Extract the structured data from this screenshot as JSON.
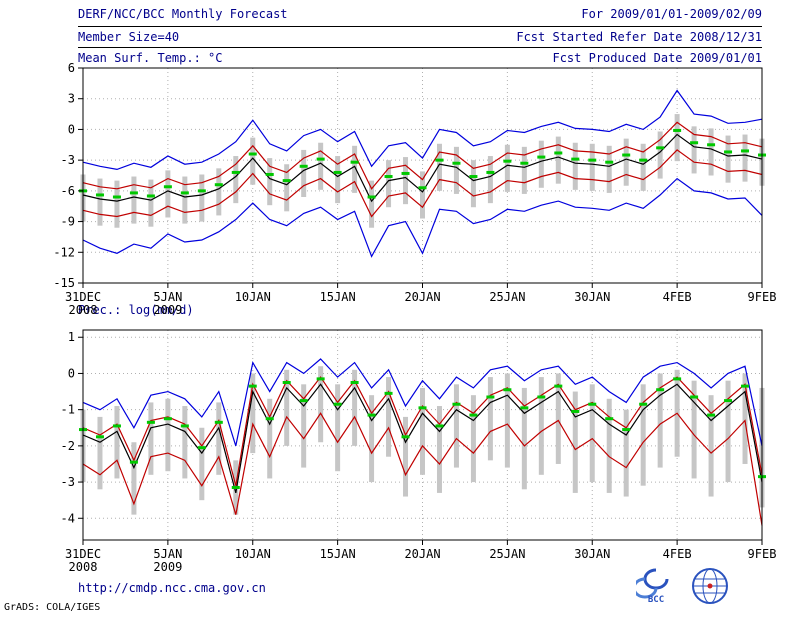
{
  "header": {
    "title": "DERF/NCC/BCC Monthly Forecast",
    "for_range": "For 2009/01/01-2009/02/09",
    "member_size": "Member Size=40",
    "fcst_started": "Fcst Started Refer Date 2008/12/31",
    "fcst_produced": "Fcst Produced Date 2009/01/01"
  },
  "footer": {
    "url": "http://cmdp.ncc.cma.gov.cn",
    "grads_credit": "GrADS: COLA/IGES",
    "logo1_label": "BCC",
    "logo2_name": "CMA/NCC emblem"
  },
  "colors": {
    "navy": "#00008b",
    "blue": "#0000dd",
    "red": "#c00000",
    "black": "#000000",
    "green": "#00c800",
    "gray": "#c6c6c6",
    "grid": "#b0b0b0"
  },
  "chart_data": [
    {
      "type": "line",
      "name": "temperature",
      "title": "Mean Surf. Temp.: °C",
      "ylabel": "°C",
      "ylim": [
        6,
        -15
      ],
      "frame_ylim": [
        6,
        -15
      ],
      "yticks": [
        6,
        3,
        0,
        -3,
        -6,
        -9,
        -12,
        -15
      ],
      "xticks": [
        {
          "day": 0,
          "label": "31DEC",
          "sub": "2008"
        },
        {
          "day": 5,
          "label": "5JAN",
          "sub": "2009"
        },
        {
          "day": 10,
          "label": "10JAN"
        },
        {
          "day": 15,
          "label": "15JAN"
        },
        {
          "day": 20,
          "label": "20JAN"
        },
        {
          "day": 25,
          "label": "25JAN"
        },
        {
          "day": 30,
          "label": "30JAN"
        },
        {
          "day": 35,
          "label": "4FEB"
        },
        {
          "day": 40,
          "label": "9FEB"
        }
      ],
      "dates": [
        "31DEC",
        "1JAN",
        "2JAN",
        "3JAN",
        "4JAN",
        "5JAN",
        "6JAN",
        "7JAN",
        "8JAN",
        "9JAN",
        "10JAN",
        "11JAN",
        "12JAN",
        "13JAN",
        "14JAN",
        "15JAN",
        "16JAN",
        "17JAN",
        "18JAN",
        "19JAN",
        "20JAN",
        "21JAN",
        "22JAN",
        "23JAN",
        "24JAN",
        "25JAN",
        "26JAN",
        "27JAN",
        "28JAN",
        "29JAN",
        "30JAN",
        "31JAN",
        "1FEB",
        "2FEB",
        "3FEB",
        "4FEB",
        "5FEB",
        "6FEB",
        "7FEB",
        "8FEB",
        "9FEB"
      ],
      "series": [
        {
          "name": "max",
          "color": "blue",
          "values": [
            -3.2,
            -3.6,
            -3.9,
            -3.3,
            -3.7,
            -2.6,
            -3.4,
            -3.2,
            -2.4,
            -1.2,
            0.9,
            -1.4,
            -2.1,
            -0.6,
            0.0,
            -1.2,
            -0.2,
            -3.6,
            -1.6,
            -1.3,
            -2.8,
            0.0,
            -0.3,
            -1.6,
            -1.2,
            -0.1,
            -0.3,
            0.3,
            0.7,
            0.1,
            0.0,
            -0.2,
            0.5,
            0.0,
            1.2,
            3.8,
            1.5,
            1.3,
            0.6,
            0.7,
            1.0
          ]
        },
        {
          "name": "upper",
          "color": "red",
          "values": [
            -5.2,
            -5.6,
            -5.8,
            -5.4,
            -5.7,
            -4.8,
            -5.4,
            -5.2,
            -4.6,
            -3.4,
            -1.6,
            -3.6,
            -4.2,
            -2.8,
            -2.1,
            -3.4,
            -2.4,
            -5.8,
            -3.8,
            -3.5,
            -4.9,
            -2.2,
            -2.5,
            -3.8,
            -3.4,
            -2.3,
            -2.5,
            -1.9,
            -1.5,
            -2.1,
            -2.2,
            -2.4,
            -1.7,
            -2.2,
            -1.0,
            0.7,
            -0.5,
            -0.7,
            -1.4,
            -1.3,
            -1.7
          ]
        },
        {
          "name": "mean",
          "color": "black",
          "values": [
            -6.4,
            -6.8,
            -7.0,
            -6.6,
            -6.9,
            -6.0,
            -6.6,
            -6.4,
            -5.8,
            -4.6,
            -2.8,
            -4.8,
            -5.4,
            -4.0,
            -3.3,
            -4.6,
            -3.6,
            -7.0,
            -5.0,
            -4.7,
            -6.1,
            -3.4,
            -3.7,
            -5.0,
            -4.6,
            -3.5,
            -3.7,
            -3.1,
            -2.7,
            -3.3,
            -3.4,
            -3.6,
            -2.9,
            -3.4,
            -2.2,
            -0.5,
            -1.7,
            -1.9,
            -2.6,
            -2.5,
            -2.9
          ]
        },
        {
          "name": "lower",
          "color": "red",
          "values": [
            -7.9,
            -8.3,
            -8.5,
            -8.1,
            -8.4,
            -7.5,
            -8.1,
            -7.9,
            -7.3,
            -6.1,
            -4.3,
            -6.3,
            -6.9,
            -5.5,
            -4.8,
            -6.1,
            -5.1,
            -8.5,
            -6.5,
            -6.2,
            -7.6,
            -4.9,
            -5.2,
            -6.5,
            -6.1,
            -5.0,
            -5.2,
            -4.6,
            -4.2,
            -4.8,
            -4.9,
            -5.1,
            -4.4,
            -4.9,
            -3.7,
            -2.0,
            -3.2,
            -3.4,
            -4.1,
            -4.0,
            -4.4
          ]
        },
        {
          "name": "min",
          "color": "blue",
          "values": [
            -10.8,
            -11.6,
            -12.1,
            -11.2,
            -11.6,
            -10.2,
            -11.0,
            -10.8,
            -10.0,
            -8.8,
            -7.2,
            -8.8,
            -9.4,
            -8.2,
            -7.6,
            -8.8,
            -8.0,
            -12.4,
            -9.4,
            -9.0,
            -12.1,
            -7.8,
            -8.0,
            -9.2,
            -8.8,
            -7.8,
            -8.0,
            -7.4,
            -7.0,
            -7.6,
            -7.7,
            -7.9,
            -7.2,
            -7.7,
            -6.4,
            -4.8,
            -6.0,
            -6.2,
            -6.8,
            -6.7,
            -8.4
          ]
        },
        {
          "name": "median",
          "color": "green",
          "style": "marks",
          "values": [
            -6.0,
            -6.4,
            -6.6,
            -6.2,
            -6.5,
            -5.6,
            -6.2,
            -6.0,
            -5.4,
            -4.2,
            -2.4,
            -4.4,
            -5.0,
            -3.6,
            -2.9,
            -4.2,
            -3.2,
            -6.6,
            -4.6,
            -4.3,
            -5.7,
            -3.0,
            -3.3,
            -4.6,
            -4.2,
            -3.1,
            -3.3,
            -2.7,
            -2.3,
            -2.9,
            -3.0,
            -3.2,
            -2.5,
            -3.0,
            -1.8,
            -0.1,
            -1.3,
            -1.5,
            -2.2,
            -2.1,
            -2.5
          ]
        }
      ],
      "bars": {
        "color": "gray",
        "top": [
          -4.4,
          -4.8,
          -5.0,
          -4.6,
          -4.9,
          -4.0,
          -4.6,
          -4.4,
          -3.8,
          -2.6,
          -0.8,
          -2.8,
          -3.4,
          -2.0,
          -1.3,
          -2.6,
          -1.6,
          -5.0,
          -3.0,
          -2.7,
          -4.1,
          -1.4,
          -1.7,
          -3.0,
          -2.6,
          -1.5,
          -1.7,
          -1.1,
          -0.7,
          -1.3,
          -1.4,
          -1.6,
          -0.9,
          -1.4,
          -0.2,
          1.5,
          0.3,
          0.1,
          -0.6,
          -0.5,
          -0.9
        ],
        "bottom": [
          -9.0,
          -9.4,
          -9.6,
          -9.2,
          -9.5,
          -8.6,
          -9.2,
          -9.0,
          -8.4,
          -7.2,
          -5.4,
          -7.4,
          -8.0,
          -6.6,
          -5.9,
          -7.2,
          -6.2,
          -9.6,
          -7.6,
          -7.3,
          -8.7,
          -6.0,
          -6.3,
          -7.6,
          -7.2,
          -6.1,
          -6.3,
          -5.7,
          -5.3,
          -5.9,
          -6.0,
          -6.2,
          -5.5,
          -6.0,
          -4.8,
          -3.1,
          -4.3,
          -4.5,
          -5.2,
          -5.1,
          -5.5
        ]
      }
    },
    {
      "type": "line",
      "name": "precipitation",
      "title": "Prec.: log(mm/d)",
      "ylabel": "log(mm/d)",
      "ylim": [
        1,
        -4
      ],
      "frame_ylim": [
        1.2,
        -4.6
      ],
      "yticks": [
        1,
        0,
        -1,
        -2,
        -3,
        -4
      ],
      "xticks": [
        {
          "day": 0,
          "label": "31DEC",
          "sub": "2008"
        },
        {
          "day": 5,
          "label": "5JAN",
          "sub": "2009"
        },
        {
          "day": 10,
          "label": "10JAN"
        },
        {
          "day": 15,
          "label": "15JAN"
        },
        {
          "day": 20,
          "label": "20JAN"
        },
        {
          "day": 25,
          "label": "25JAN"
        },
        {
          "day": 30,
          "label": "30JAN"
        },
        {
          "day": 35,
          "label": "4FEB"
        },
        {
          "day": 40,
          "label": "9FEB"
        }
      ],
      "dates": [
        "31DEC",
        "1JAN",
        "2JAN",
        "3JAN",
        "4JAN",
        "5JAN",
        "6JAN",
        "7JAN",
        "8JAN",
        "9JAN",
        "10JAN",
        "11JAN",
        "12JAN",
        "13JAN",
        "14JAN",
        "15JAN",
        "16JAN",
        "17JAN",
        "18JAN",
        "19JAN",
        "20JAN",
        "21JAN",
        "22JAN",
        "23JAN",
        "24JAN",
        "25JAN",
        "26JAN",
        "27JAN",
        "28JAN",
        "29JAN",
        "30JAN",
        "31JAN",
        "1FEB",
        "2FEB",
        "3FEB",
        "4FEB",
        "5FEB",
        "6FEB",
        "7FEB",
        "8FEB",
        "9FEB"
      ],
      "series": [
        {
          "name": "max",
          "color": "blue",
          "values": [
            -0.8,
            -1.0,
            -0.7,
            -1.5,
            -0.6,
            -0.5,
            -0.7,
            -1.2,
            -0.5,
            -2.0,
            0.3,
            -0.5,
            0.3,
            0.0,
            0.4,
            -0.1,
            0.3,
            -0.4,
            0.1,
            -0.9,
            -0.2,
            -0.7,
            -0.1,
            -0.4,
            0.1,
            0.2,
            -0.2,
            0.1,
            0.2,
            -0.3,
            -0.1,
            -0.5,
            -0.8,
            -0.1,
            0.2,
            0.3,
            0.0,
            -0.4,
            0.0,
            0.2,
            -2.0
          ]
        },
        {
          "name": "upper",
          "color": "red",
          "values": [
            -1.5,
            -1.7,
            -1.4,
            -2.4,
            -1.3,
            -1.2,
            -1.4,
            -2.0,
            -1.3,
            -3.1,
            -0.3,
            -1.2,
            -0.2,
            -0.7,
            -0.1,
            -0.8,
            -0.2,
            -1.1,
            -0.5,
            -1.7,
            -0.9,
            -1.4,
            -0.8,
            -1.1,
            -0.6,
            -0.4,
            -0.9,
            -0.6,
            -0.3,
            -1.0,
            -0.8,
            -1.2,
            -1.5,
            -0.8,
            -0.4,
            -0.1,
            -0.6,
            -1.1,
            -0.7,
            -0.3,
            -2.8
          ]
        },
        {
          "name": "mean",
          "color": "black",
          "values": [
            -1.7,
            -1.9,
            -1.6,
            -2.6,
            -1.5,
            -1.4,
            -1.6,
            -2.2,
            -1.5,
            -3.3,
            -0.5,
            -1.4,
            -0.4,
            -0.9,
            -0.3,
            -1.0,
            -0.4,
            -1.3,
            -0.7,
            -1.9,
            -1.1,
            -1.6,
            -1.0,
            -1.3,
            -0.8,
            -0.6,
            -1.1,
            -0.8,
            -0.5,
            -1.2,
            -1.0,
            -1.4,
            -1.7,
            -1.0,
            -0.6,
            -0.3,
            -0.8,
            -1.3,
            -0.9,
            -0.5,
            -3.0
          ]
        },
        {
          "name": "lower",
          "color": "red",
          "values": [
            -2.5,
            -2.8,
            -2.4,
            -3.6,
            -2.3,
            -2.2,
            -2.4,
            -3.1,
            -2.3,
            -3.9,
            -1.4,
            -2.3,
            -1.2,
            -1.8,
            -1.1,
            -1.9,
            -1.2,
            -2.2,
            -1.5,
            -2.8,
            -2.0,
            -2.5,
            -1.8,
            -2.2,
            -1.6,
            -1.4,
            -2.0,
            -1.6,
            -1.3,
            -2.1,
            -1.8,
            -2.3,
            -2.6,
            -1.9,
            -1.4,
            -1.1,
            -1.7,
            -2.2,
            -1.8,
            -1.3,
            -4.2
          ]
        },
        {
          "name": "median",
          "color": "green",
          "style": "marks",
          "values": [
            -1.55,
            -1.75,
            -1.45,
            -2.45,
            -1.35,
            -1.25,
            -1.45,
            -2.05,
            -1.35,
            -3.15,
            -0.35,
            -1.25,
            -0.25,
            -0.75,
            -0.15,
            -0.85,
            -0.25,
            -1.15,
            -0.55,
            -1.75,
            -0.95,
            -1.45,
            -0.85,
            -1.15,
            -0.65,
            -0.45,
            -0.95,
            -0.65,
            -0.35,
            -1.05,
            -0.85,
            -1.25,
            -1.55,
            -0.85,
            -0.45,
            -0.15,
            -0.65,
            -1.15,
            -0.75,
            -0.35,
            -2.85
          ]
        }
      ],
      "bars": {
        "color": "gray",
        "top": [
          -1.0,
          -1.2,
          -0.9,
          -1.9,
          -0.8,
          -0.7,
          -0.9,
          -1.5,
          -0.8,
          -2.4,
          0.0,
          -0.7,
          0.1,
          -0.3,
          0.2,
          -0.3,
          0.1,
          -0.6,
          -0.1,
          -1.2,
          -0.4,
          -0.9,
          -0.3,
          -0.6,
          -0.1,
          0.0,
          -0.4,
          -0.1,
          0.0,
          -0.5,
          -0.3,
          -0.7,
          -1.0,
          -0.3,
          0.0,
          0.1,
          -0.2,
          -0.6,
          -0.2,
          0.0,
          -0.4
        ],
        "bottom": [
          -3.0,
          -3.2,
          -2.9,
          -3.9,
          -2.8,
          -2.7,
          -2.9,
          -3.5,
          -2.8,
          -3.9,
          -2.2,
          -2.9,
          -2.0,
          -2.6,
          -1.9,
          -2.7,
          -2.0,
          -3.0,
          -2.3,
          -3.4,
          -2.8,
          -3.3,
          -2.6,
          -3.0,
          -2.4,
          -2.6,
          -3.2,
          -2.8,
          -2.5,
          -3.3,
          -3.0,
          -3.3,
          -3.4,
          -3.1,
          -2.6,
          -2.3,
          -2.9,
          -3.4,
          -3.0,
          -2.5,
          -3.7
        ]
      }
    }
  ]
}
